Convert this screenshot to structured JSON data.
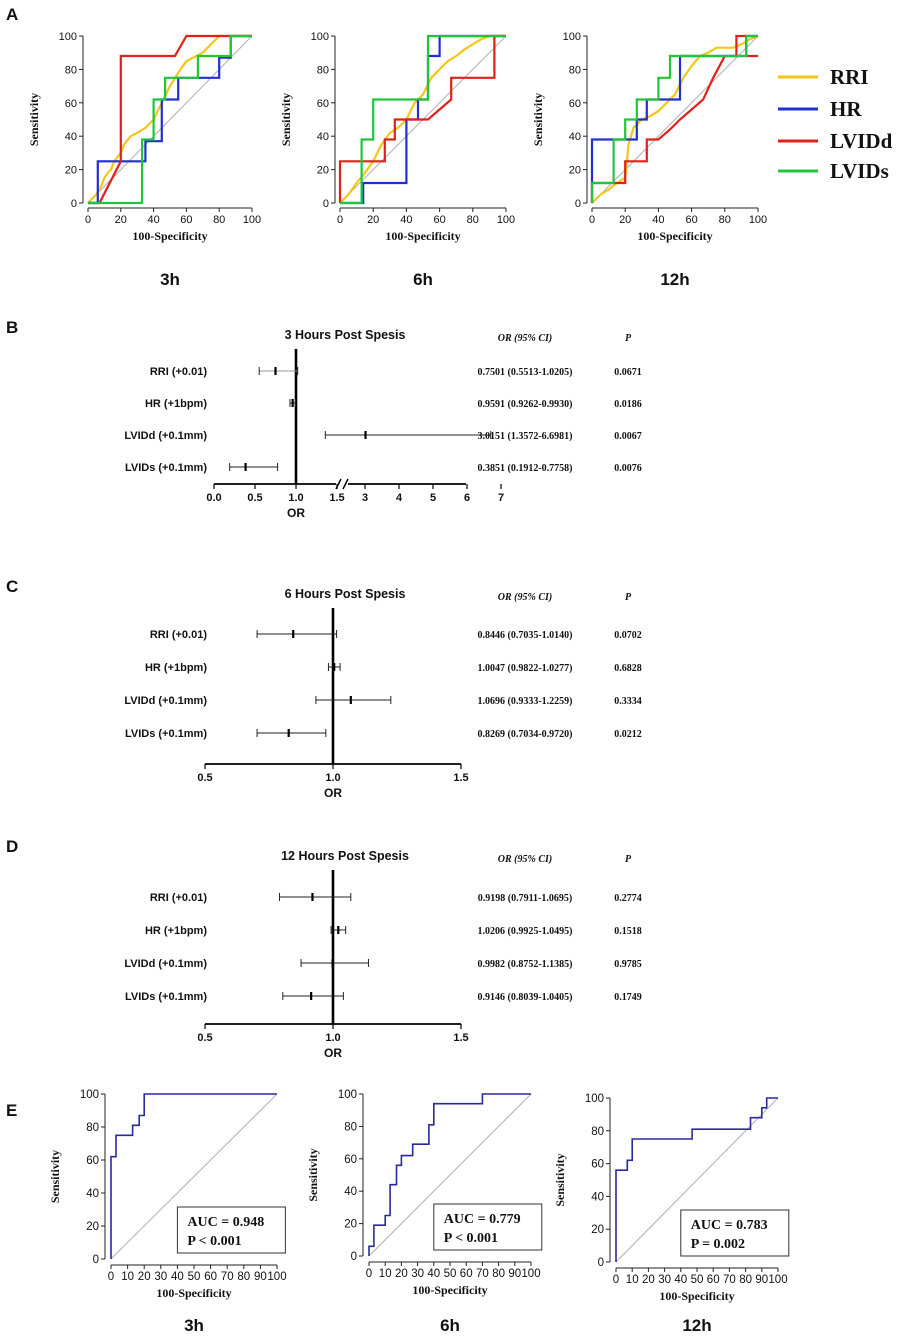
{
  "panel_letters": [
    "A",
    "B",
    "C",
    "D",
    "E"
  ],
  "colors": {
    "RRI": "#f5c518",
    "HR": "#1f2fd0",
    "LVIDd": "#e0201a",
    "LVIDs": "#22c43a",
    "reference": "#b0b0b0",
    "auc_curve": "#2a2a9a"
  },
  "chart_data": [
    {
      "panel": "A",
      "type": "line",
      "subtitle": "3h",
      "xlabel": "100-Specificity",
      "ylabel": "Sensitivity",
      "xlim": [
        0,
        100
      ],
      "ylim": [
        0,
        100
      ],
      "xticks": [
        0,
        20,
        40,
        60,
        80,
        100
      ],
      "yticks": [
        0,
        20,
        40,
        60,
        80,
        100
      ],
      "series": [
        {
          "name": "RRI",
          "x": [
            0,
            5,
            8,
            10,
            12,
            14,
            16,
            20,
            22,
            26,
            30,
            35,
            40,
            45,
            50,
            55,
            60,
            70,
            75,
            80,
            85,
            90,
            100
          ],
          "y": [
            0,
            5,
            10,
            15,
            18,
            20,
            25,
            30,
            35,
            40,
            42,
            45,
            50,
            60,
            70,
            78,
            85,
            90,
            95,
            100,
            100,
            100,
            100
          ]
        },
        {
          "name": "HR",
          "x": [
            0,
            6,
            6,
            20,
            20,
            35,
            35,
            40,
            40,
            45,
            45,
            55,
            55,
            80,
            80,
            87,
            87,
            100
          ],
          "y": [
            0,
            0,
            25,
            25,
            25,
            25,
            37,
            37,
            37,
            37,
            62,
            62,
            75,
            75,
            87,
            87,
            100,
            100
          ]
        },
        {
          "name": "LVIDd",
          "x": [
            0,
            7,
            20,
            20,
            53,
            60,
            100
          ],
          "y": [
            0,
            0,
            25,
            88,
            88,
            100,
            100
          ]
        },
        {
          "name": "LVIDs",
          "x": [
            0,
            13,
            33,
            33,
            40,
            40,
            47,
            47,
            60,
            67,
            67,
            87,
            87,
            100
          ],
          "y": [
            0,
            0,
            0,
            38,
            38,
            62,
            62,
            75,
            75,
            75,
            88,
            88,
            100,
            100
          ]
        }
      ]
    },
    {
      "panel": "A",
      "type": "line",
      "subtitle": "6h",
      "xlabel": "100-Specificity",
      "ylabel": "Sensitivity",
      "xlim": [
        0,
        100
      ],
      "ylim": [
        0,
        100
      ],
      "xticks": [
        0,
        20,
        40,
        60,
        80,
        100
      ],
      "yticks": [
        0,
        20,
        40,
        60,
        80,
        100
      ],
      "series": [
        {
          "name": "RRI",
          "x": [
            0,
            5,
            10,
            15,
            20,
            25,
            30,
            35,
            40,
            45,
            50,
            55,
            60,
            65,
            70,
            75,
            80,
            85,
            90,
            95,
            100
          ],
          "y": [
            0,
            5,
            12,
            18,
            25,
            35,
            42,
            45,
            50,
            60,
            65,
            75,
            80,
            85,
            88,
            92,
            95,
            98,
            100,
            100,
            100
          ]
        },
        {
          "name": "HR",
          "x": [
            0,
            7,
            14,
            14,
            40,
            40,
            47,
            47,
            53,
            53,
            60,
            60,
            93,
            93,
            100
          ],
          "y": [
            0,
            0,
            0,
            12,
            12,
            50,
            50,
            62,
            62,
            88,
            88,
            100,
            100,
            100,
            100
          ]
        },
        {
          "name": "LVIDd",
          "x": [
            0,
            0,
            13,
            13,
            27,
            27,
            33,
            33,
            40,
            53,
            53,
            67,
            67,
            93,
            93,
            100
          ],
          "y": [
            0,
            25,
            25,
            25,
            25,
            38,
            38,
            50,
            50,
            50,
            50,
            62,
            75,
            75,
            100,
            100
          ]
        },
        {
          "name": "LVIDs",
          "x": [
            0,
            13,
            13,
            20,
            20,
            40,
            40,
            53,
            53,
            100
          ],
          "y": [
            0,
            0,
            38,
            38,
            62,
            62,
            62,
            62,
            100,
            100
          ]
        }
      ]
    },
    {
      "panel": "A",
      "type": "line",
      "subtitle": "12h",
      "xlabel": "100-Specificity",
      "ylabel": "Sensitivity",
      "xlim": [
        0,
        100
      ],
      "ylim": [
        0,
        100
      ],
      "xticks": [
        0,
        20,
        40,
        60,
        80,
        100
      ],
      "yticks": [
        0,
        20,
        40,
        60,
        80,
        100
      ],
      "series": [
        {
          "name": "RRI",
          "x": [
            0,
            5,
            10,
            15,
            20,
            22,
            25,
            30,
            35,
            40,
            45,
            50,
            55,
            60,
            65,
            70,
            75,
            80,
            85,
            90,
            95,
            100
          ],
          "y": [
            0,
            5,
            8,
            12,
            15,
            35,
            45,
            50,
            52,
            55,
            60,
            65,
            75,
            82,
            88,
            90,
            93,
            93,
            93,
            95,
            98,
            100
          ]
        },
        {
          "name": "HR",
          "x": [
            0,
            0,
            13,
            13,
            27,
            27,
            33,
            33,
            53,
            53,
            87,
            87,
            93,
            93,
            100
          ],
          "y": [
            0,
            38,
            38,
            38,
            38,
            50,
            50,
            62,
            62,
            88,
            88,
            88,
            88,
            100,
            100
          ]
        },
        {
          "name": "LVIDd",
          "x": [
            0,
            0,
            13,
            20,
            20,
            33,
            33,
            40,
            47,
            53,
            60,
            67,
            73,
            80,
            87,
            87,
            93,
            93,
            100
          ],
          "y": [
            0,
            12,
            12,
            12,
            25,
            25,
            38,
            38,
            44,
            50,
            56,
            62,
            75,
            88,
            88,
            100,
            100,
            88,
            88
          ]
        },
        {
          "name": "LVIDs",
          "x": [
            0,
            0,
            13,
            13,
            20,
            20,
            27,
            27,
            40,
            40,
            47,
            47,
            53,
            53,
            93,
            93,
            100
          ],
          "y": [
            0,
            12,
            12,
            38,
            38,
            50,
            50,
            62,
            62,
            75,
            75,
            88,
            88,
            88,
            88,
            100,
            100
          ]
        }
      ]
    },
    {
      "panel": "B",
      "type": "forest",
      "title": "3 Hours Post Spesis",
      "xlabel": "OR",
      "header_or": "OR (95% CI)",
      "header_p": "P",
      "xticks": [
        "0.0",
        "0.5",
        "1.0",
        "1.5",
        "3",
        "4",
        "5",
        "6",
        "7"
      ],
      "rows": [
        {
          "label": "RRI (+0.01)",
          "or": 0.7501,
          "lo": 0.5513,
          "hi": 1.0205,
          "text": "0.7501 (0.5513-1.0205)",
          "p": "0.0671"
        },
        {
          "label": "HR (+1bpm)",
          "or": 0.9591,
          "lo": 0.9262,
          "hi": 0.993,
          "text": "0.9591 (0.9262-0.9930)",
          "p": "0.0186"
        },
        {
          "label": "LVIDd (+0.1mm)",
          "or": 3.0151,
          "lo": 1.3572,
          "hi": 6.6981,
          "text": "3.0151 (1.3572-6.6981)",
          "p": "0.0067"
        },
        {
          "label": "LVIDs (+0.1mm)",
          "or": 0.3851,
          "lo": 0.1912,
          "hi": 0.7758,
          "text": "0.3851 (0.1912-0.7758)",
          "p": "0.0076"
        }
      ]
    },
    {
      "panel": "C",
      "type": "forest",
      "title": "6 Hours Post Spesis",
      "xlabel": "OR",
      "header_or": "OR (95% CI)",
      "header_p": "P",
      "xticks": [
        "0.5",
        "1.0",
        "1.5"
      ],
      "rows": [
        {
          "label": "RRI (+0.01)",
          "or": 0.8446,
          "lo": 0.7035,
          "hi": 1.014,
          "text": "0.8446 (0.7035-1.0140)",
          "p": "0.0702"
        },
        {
          "label": "HR (+1bpm)",
          "or": 1.0047,
          "lo": 0.9822,
          "hi": 1.0277,
          "text": "1.0047 (0.9822-1.0277)",
          "p": "0.6828"
        },
        {
          "label": "LVIDd (+0.1mm)",
          "or": 1.0696,
          "lo": 0.9333,
          "hi": 1.2259,
          "text": "1.0696 (0.9333-1.2259)",
          "p": "0.3334"
        },
        {
          "label": "LVIDs (+0.1mm)",
          "or": 0.8269,
          "lo": 0.7034,
          "hi": 0.972,
          "text": "0.8269 (0.7034-0.9720)",
          "p": "0.0212"
        }
      ]
    },
    {
      "panel": "D",
      "type": "forest",
      "title": "12 Hours Post Spesis",
      "xlabel": "OR",
      "header_or": "OR (95% CI)",
      "header_p": "P",
      "xticks": [
        "0.5",
        "1.0",
        "1.5"
      ],
      "rows": [
        {
          "label": "RRI (+0.01)",
          "or": 0.9198,
          "lo": 0.7911,
          "hi": 1.0695,
          "text": "0.9198 (0.7911-1.0695)",
          "p": "0.2774"
        },
        {
          "label": "HR (+1bpm)",
          "or": 1.0206,
          "lo": 0.9925,
          "hi": 1.0495,
          "text": "1.0206 (0.9925-1.0495)",
          "p": "0.1518"
        },
        {
          "label": "LVIDd (+0.1mm)",
          "or": 0.9982,
          "lo": 0.8752,
          "hi": 1.1385,
          "text": "0.9982 (0.8752-1.1385)",
          "p": "0.9785"
        },
        {
          "label": "LVIDs (+0.1mm)",
          "or": 0.9146,
          "lo": 0.8039,
          "hi": 1.0405,
          "text": "0.9146 (0.8039-1.0405)",
          "p": "0.1749"
        }
      ]
    },
    {
      "panel": "E",
      "type": "line",
      "subtitle": "3h",
      "xlabel": "100-Specificity",
      "ylabel": "Sensitivity",
      "xlim": [
        0,
        100
      ],
      "ylim": [
        0,
        100
      ],
      "xticks": [
        0,
        10,
        20,
        30,
        40,
        50,
        60,
        70,
        80,
        90,
        100
      ],
      "yticks": [
        0,
        20,
        40,
        60,
        80,
        100
      ],
      "auc": "AUC = 0.948",
      "p": "P < 0.001",
      "series": [
        {
          "name": "ROC",
          "x": [
            0,
            0,
            3,
            3,
            7,
            7,
            13,
            13,
            17,
            17,
            20,
            20,
            100
          ],
          "y": [
            0,
            62,
            62,
            75,
            75,
            75,
            75,
            81,
            81,
            87,
            87,
            100,
            100
          ]
        }
      ]
    },
    {
      "panel": "E",
      "type": "line",
      "subtitle": "6h",
      "xlabel": "100-Specificity",
      "ylabel": "Sensitivity",
      "xlim": [
        0,
        100
      ],
      "ylim": [
        0,
        100
      ],
      "xticks": [
        0,
        10,
        20,
        30,
        40,
        50,
        60,
        70,
        80,
        90,
        100
      ],
      "yticks": [
        0,
        20,
        40,
        60,
        80,
        100
      ],
      "auc": "AUC = 0.779",
      "p": "P < 0.001",
      "series": [
        {
          "name": "ROC",
          "x": [
            0,
            0,
            3,
            3,
            10,
            10,
            13,
            13,
            17,
            17,
            20,
            20,
            27,
            27,
            33,
            33,
            37,
            37,
            40,
            40,
            70,
            70,
            100
          ],
          "y": [
            0,
            6,
            6,
            19,
            19,
            25,
            25,
            44,
            44,
            56,
            56,
            62,
            62,
            69,
            69,
            69,
            69,
            81,
            81,
            94,
            94,
            100,
            100
          ]
        }
      ]
    },
    {
      "panel": "E",
      "type": "line",
      "subtitle": "12h",
      "xlabel": "100-Specificity",
      "ylabel": "Sensitivity",
      "xlim": [
        0,
        100
      ],
      "ylim": [
        0,
        100
      ],
      "xticks": [
        0,
        10,
        20,
        30,
        40,
        50,
        60,
        70,
        80,
        90,
        100
      ],
      "yticks": [
        0,
        20,
        40,
        60,
        80,
        100
      ],
      "auc": "AUC = 0.783",
      "p": "P = 0.002",
      "series": [
        {
          "name": "ROC",
          "x": [
            0,
            0,
            3,
            3,
            7,
            7,
            10,
            10,
            47,
            47,
            83,
            83,
            90,
            90,
            93,
            93,
            100
          ],
          "y": [
            0,
            56,
            56,
            56,
            56,
            62,
            62,
            75,
            75,
            81,
            81,
            88,
            88,
            94,
            94,
            100,
            100
          ]
        }
      ]
    }
  ],
  "legend": [
    "RRI",
    "HR",
    "LVIDd",
    "LVIDs"
  ]
}
